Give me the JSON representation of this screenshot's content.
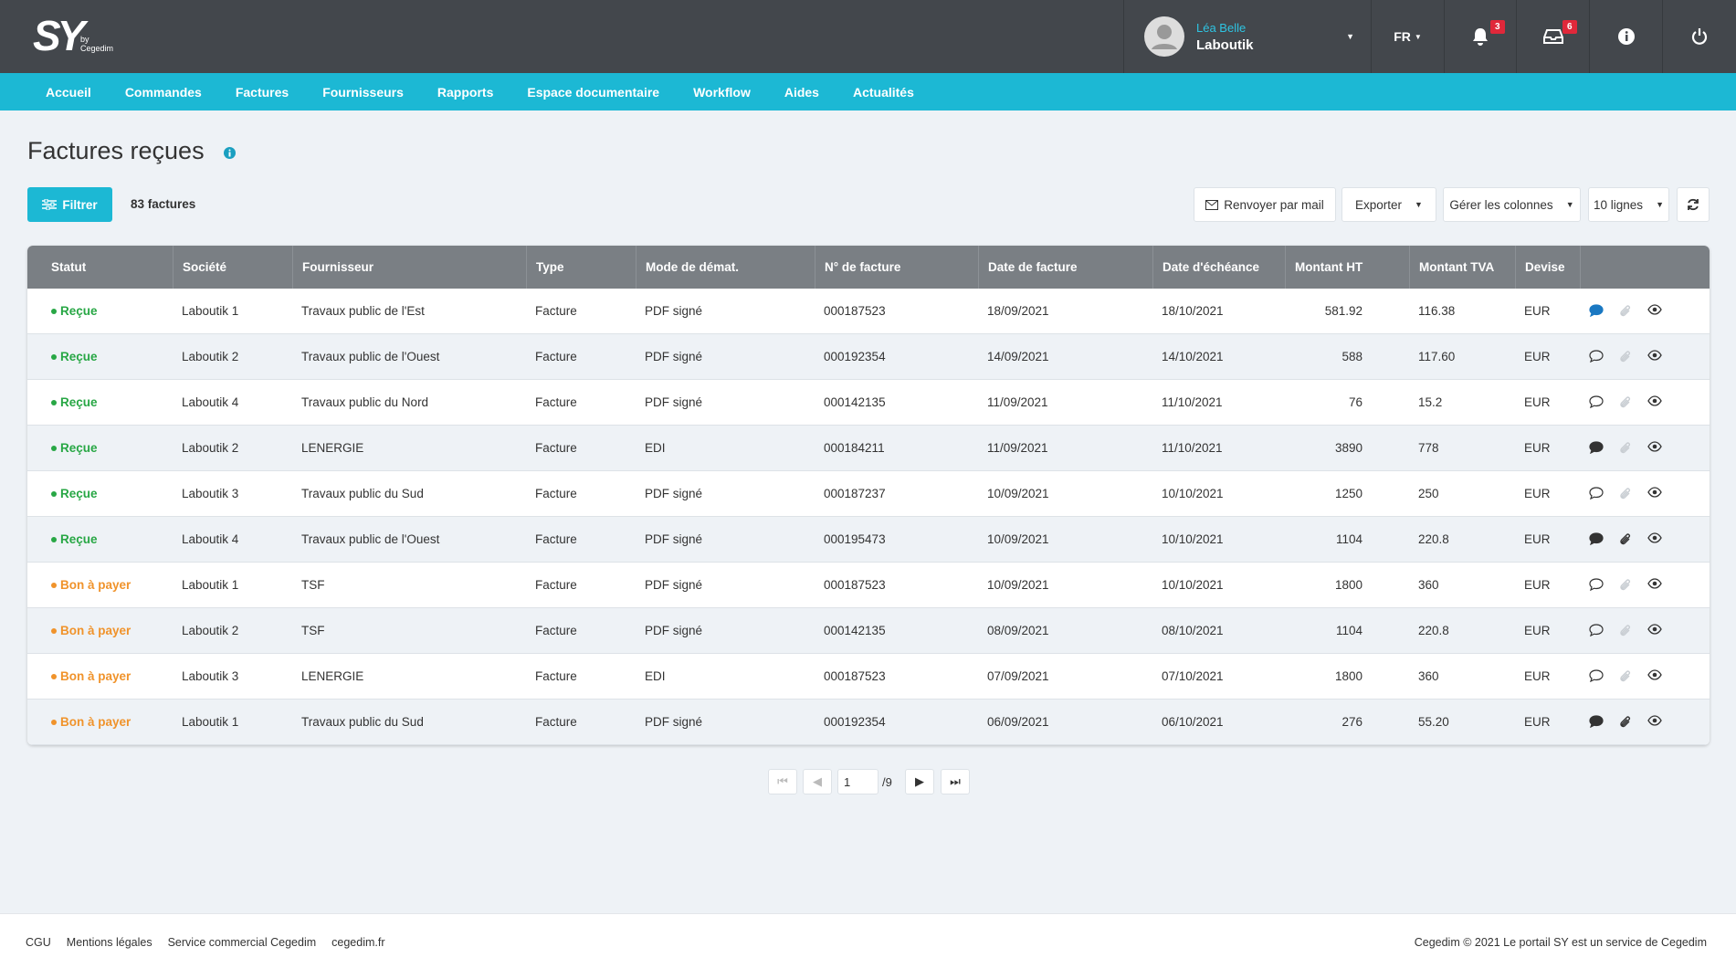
{
  "header": {
    "logo": "SY",
    "logo_sub": "by",
    "logo_brand": "Cegedim",
    "user_name": "Léa Belle",
    "company": "Laboutik",
    "language": "FR",
    "notifications": "3",
    "messages": "6"
  },
  "nav": [
    "Accueil",
    "Commandes",
    "Factures",
    "Fournisseurs",
    "Rapports",
    "Espace documentaire",
    "Workflow",
    "Aides",
    "Actualités"
  ],
  "page": {
    "title": "Factures reçues",
    "filter": "Filtrer",
    "count": "83 factures",
    "actions": [
      "Renvoyer par mail",
      "Exporter",
      "Gérer les colonnes",
      "10 lignes"
    ]
  },
  "table": {
    "columns": [
      "Statut",
      "Société",
      "Fournisseur",
      "Type",
      "Mode de démat.",
      "N°  de facture",
      "Date de facture",
      "Date d'échéance",
      "Montant HT",
      "Montant TVA",
      "Devise"
    ],
    "rows": [
      {
        "cells": [
          "Reçue",
          "Laboutik 1",
          "Travaux public de l'Est",
          "Facture",
          "PDF signé",
          "000187523",
          "18/09/2021",
          "18/10/2021",
          "581.92",
          "116.38",
          "EUR"
        ],
        "status_color": "#28a745",
        "comment": "unread",
        "attachment": false
      },
      {
        "cells": [
          "Reçue",
          "Laboutik 2",
          "Travaux public de l'Ouest",
          "Facture",
          "PDF signé",
          "000192354",
          "14/09/2021",
          "14/10/2021",
          "588",
          "117.60",
          "EUR"
        ],
        "status_color": "#28a745",
        "comment": "empty",
        "attachment": false
      },
      {
        "cells": [
          "Reçue",
          "Laboutik 4",
          "Travaux public du Nord",
          "Facture",
          "PDF signé",
          "000142135",
          "11/09/2021",
          "11/10/2021",
          "76",
          "15.2",
          "EUR"
        ],
        "status_color": "#28a745",
        "comment": "empty",
        "attachment": false
      },
      {
        "cells": [
          "Reçue",
          "Laboutik 2",
          "LENERGIE",
          "Facture",
          "EDI",
          "000184211",
          "11/09/2021",
          "11/10/2021",
          "3890",
          "778",
          "EUR"
        ],
        "status_color": "#28a745",
        "comment": "filled",
        "attachment": false
      },
      {
        "cells": [
          "Reçue",
          "Laboutik 3",
          "Travaux public du Sud",
          "Facture",
          "PDF signé",
          "000187237",
          "10/09/2021",
          "10/10/2021",
          "1250",
          "250",
          "EUR"
        ],
        "status_color": "#28a745",
        "comment": "empty",
        "attachment": false
      },
      {
        "cells": [
          "Reçue",
          "Laboutik 4",
          "Travaux public de l'Ouest",
          "Facture",
          "PDF signé",
          "000195473",
          "10/09/2021",
          "10/10/2021",
          "1104",
          "220.8",
          "EUR"
        ],
        "status_color": "#28a745",
        "comment": "filled",
        "attachment": true
      },
      {
        "cells": [
          "Bon à payer",
          "Laboutik 1",
          "TSF",
          "Facture",
          "PDF signé",
          "000187523",
          "10/09/2021",
          "10/10/2021",
          "1800",
          "360",
          "EUR"
        ],
        "status_color": "#f0932b",
        "comment": "empty",
        "attachment": false
      },
      {
        "cells": [
          "Bon à payer",
          "Laboutik 2",
          "TSF",
          "Facture",
          "PDF signé",
          "000142135",
          "08/09/2021",
          "08/10/2021",
          "1104",
          "220.8",
          "EUR"
        ],
        "status_color": "#f0932b",
        "comment": "empty",
        "attachment": false
      },
      {
        "cells": [
          "Bon à payer",
          "Laboutik 3",
          "LENERGIE",
          "Facture",
          "EDI",
          "000187523",
          "07/09/2021",
          "07/10/2021",
          "1800",
          "360",
          "EUR"
        ],
        "status_color": "#f0932b",
        "comment": "empty",
        "attachment": false
      },
      {
        "cells": [
          "Bon à payer",
          "Laboutik 1",
          "Travaux public du Sud",
          "Facture",
          "PDF signé",
          "000192354",
          "06/09/2021",
          "06/10/2021",
          "276",
          "55.20",
          "EUR"
        ],
        "status_color": "#f0932b",
        "comment": "filled",
        "attachment": true
      }
    ]
  },
  "pagination": {
    "page": "1",
    "total": "/9"
  },
  "footer": {
    "links": [
      "CGU",
      "Mentions légales",
      "Service commercial Cegedim",
      "cegedim.fr"
    ],
    "copyright": "Cegedim © 2021  Le portail SY est un service de Cegedim"
  }
}
